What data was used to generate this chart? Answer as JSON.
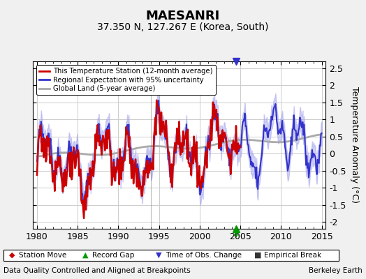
{
  "title": "MAESANRI",
  "subtitle": "37.350 N, 127.267 E (Korea, South)",
  "xlabel_left": "Data Quality Controlled and Aligned at Breakpoints",
  "xlabel_right": "Berkeley Earth",
  "ylabel": "Temperature Anomaly (°C)",
  "xlim": [
    1979.5,
    2015.5
  ],
  "ylim": [
    -2.2,
    2.7
  ],
  "yticks": [
    -2,
    -1.5,
    -1,
    -0.5,
    0,
    0.5,
    1,
    1.5,
    2,
    2.5
  ],
  "xticks": [
    1980,
    1985,
    1990,
    1995,
    2000,
    2005,
    2010,
    2015
  ],
  "background_color": "#f0f0f0",
  "plot_bg_color": "#ffffff",
  "grid_color": "#cccccc",
  "regional_color": "#3333cc",
  "regional_fill_color": "#aaaaee",
  "station_color": "#cc0000",
  "global_color": "#aaaaaa",
  "legend_items": [
    {
      "label": "This Temperature Station (12-month average)",
      "color": "#cc0000",
      "lw": 2
    },
    {
      "label": "Regional Expectation with 95% uncertainty",
      "color": "#3333cc",
      "lw": 2
    },
    {
      "label": "Global Land (5-year average)",
      "color": "#aaaaaa",
      "lw": 2
    }
  ],
  "marker_legend": [
    {
      "label": "Station Move",
      "marker": "D",
      "color": "#cc0000"
    },
    {
      "label": "Record Gap",
      "marker": "^",
      "color": "#009900"
    },
    {
      "label": "Time of Obs. Change",
      "marker": "v",
      "color": "#3333cc"
    },
    {
      "label": "Empirical Break",
      "marker": "s",
      "color": "#333333"
    }
  ],
  "record_gap_x": 2004.5,
  "obs_change_x": 2004.5,
  "station_break_x": 1994.0,
  "title_fontsize": 13,
  "subtitle_fontsize": 10,
  "tick_fontsize": 9,
  "label_fontsize": 9
}
